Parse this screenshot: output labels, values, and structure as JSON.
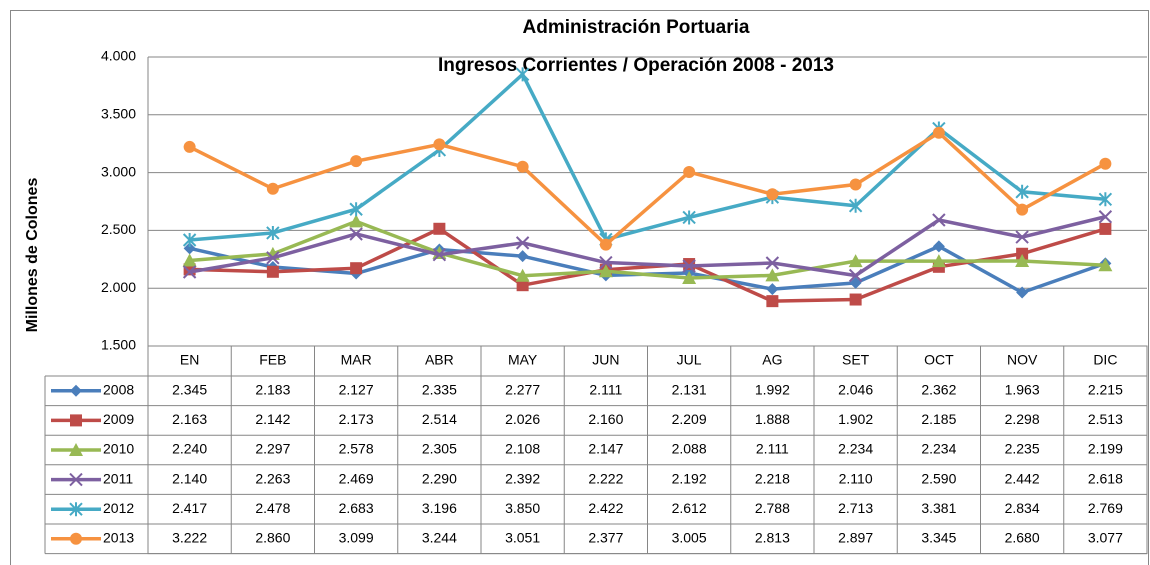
{
  "chart_data": {
    "type": "line",
    "title": "Administración Portuaria",
    "subtitle": "Ingresos  Corrientes / Operación 2008  - 2013",
    "y_label": "Millones de Colones",
    "categories": [
      "EN",
      "FEB",
      "MAR",
      "ABR",
      "MAY",
      "JUN",
      "JUL",
      "AG",
      "SET",
      "OCT",
      "NOV",
      "DIC"
    ],
    "ylim": [
      1500,
      4000
    ],
    "yticks": [
      {
        "value": 1500,
        "label": "1.500"
      },
      {
        "value": 2000,
        "label": "2.000"
      },
      {
        "value": 2500,
        "label": "2.500"
      },
      {
        "value": 3000,
        "label": "3.000"
      },
      {
        "value": 3500,
        "label": "3.500"
      },
      {
        "value": 4000,
        "label": "4.000"
      }
    ],
    "grid": true,
    "series": [
      {
        "name": "2008",
        "color": "#4a7ebb",
        "marker": "diamond",
        "values": [
          2345,
          2183,
          2127,
          2335,
          2277,
          2111,
          2131,
          1992,
          2046,
          2362,
          1963,
          2215
        ],
        "value_labels": [
          "2.345",
          "2.183",
          "2.127",
          "2.335",
          "2.277",
          "2.111",
          "2.131",
          "1.992",
          "2.046",
          "2.362",
          "1.963",
          "2.215"
        ]
      },
      {
        "name": "2009",
        "color": "#be4b48",
        "marker": "square",
        "values": [
          2163,
          2142,
          2173,
          2514,
          2026,
          2160,
          2209,
          1888,
          1902,
          2185,
          2298,
          2513
        ],
        "value_labels": [
          "2.163",
          "2.142",
          "2.173",
          "2.514",
          "2.026",
          "2.160",
          "2.209",
          "1.888",
          "1.902",
          "2.185",
          "2.298",
          "2.513"
        ]
      },
      {
        "name": "2010",
        "color": "#98b954",
        "marker": "triangle",
        "values": [
          2240,
          2297,
          2578,
          2305,
          2108,
          2147,
          2088,
          2111,
          2234,
          2234,
          2235,
          2199
        ],
        "value_labels": [
          "2.240",
          "2.297",
          "2.578",
          "2.305",
          "2.108",
          "2.147",
          "2.088",
          "2.111",
          "2.234",
          "2.234",
          "2.235",
          "2.199"
        ]
      },
      {
        "name": "2011",
        "color": "#7d60a0",
        "marker": "x",
        "values": [
          2140,
          2263,
          2469,
          2290,
          2392,
          2222,
          2192,
          2218,
          2110,
          2590,
          2442,
          2618
        ],
        "value_labels": [
          "2.140",
          "2.263",
          "2.469",
          "2.290",
          "2.392",
          "2.222",
          "2.192",
          "2.218",
          "2.110",
          "2.590",
          "2.442",
          "2.618"
        ]
      },
      {
        "name": "2012",
        "color": "#46aac5",
        "marker": "star",
        "values": [
          2417,
          2478,
          2683,
          3196,
          3850,
          2422,
          2612,
          2788,
          2713,
          3381,
          2834,
          2769
        ],
        "value_labels": [
          "2.417",
          "2.478",
          "2.683",
          "3.196",
          "3.850",
          "2.422",
          "2.612",
          "2.788",
          "2.713",
          "3.381",
          "2.834",
          "2.769"
        ]
      },
      {
        "name": "2013",
        "color": "#f69240",
        "marker": "circle",
        "values": [
          3222,
          2860,
          3099,
          3244,
          3051,
          2377,
          3005,
          2813,
          2897,
          3345,
          2680,
          3077
        ],
        "value_labels": [
          "3.222",
          "2.860",
          "3.099",
          "3.244",
          "3.051",
          "2.377",
          "3.005",
          "2.813",
          "2.897",
          "3.345",
          "2.680",
          "3.077"
        ]
      }
    ]
  }
}
